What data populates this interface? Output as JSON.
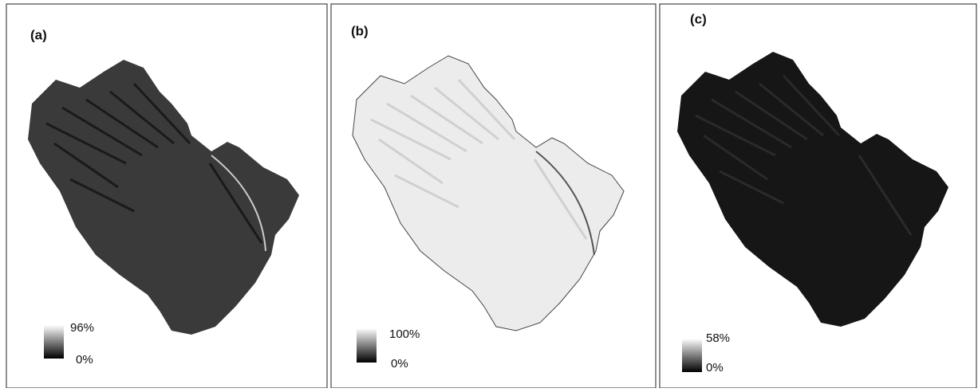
{
  "panels": [
    {
      "label": "(a)",
      "legend": {
        "max": "96%",
        "min": "0%"
      }
    },
    {
      "label": "(b)",
      "legend": {
        "max": "100%",
        "min": "0%"
      }
    },
    {
      "label": "(c)",
      "legend": {
        "max": "58%",
        "min": "0%"
      }
    }
  ]
}
